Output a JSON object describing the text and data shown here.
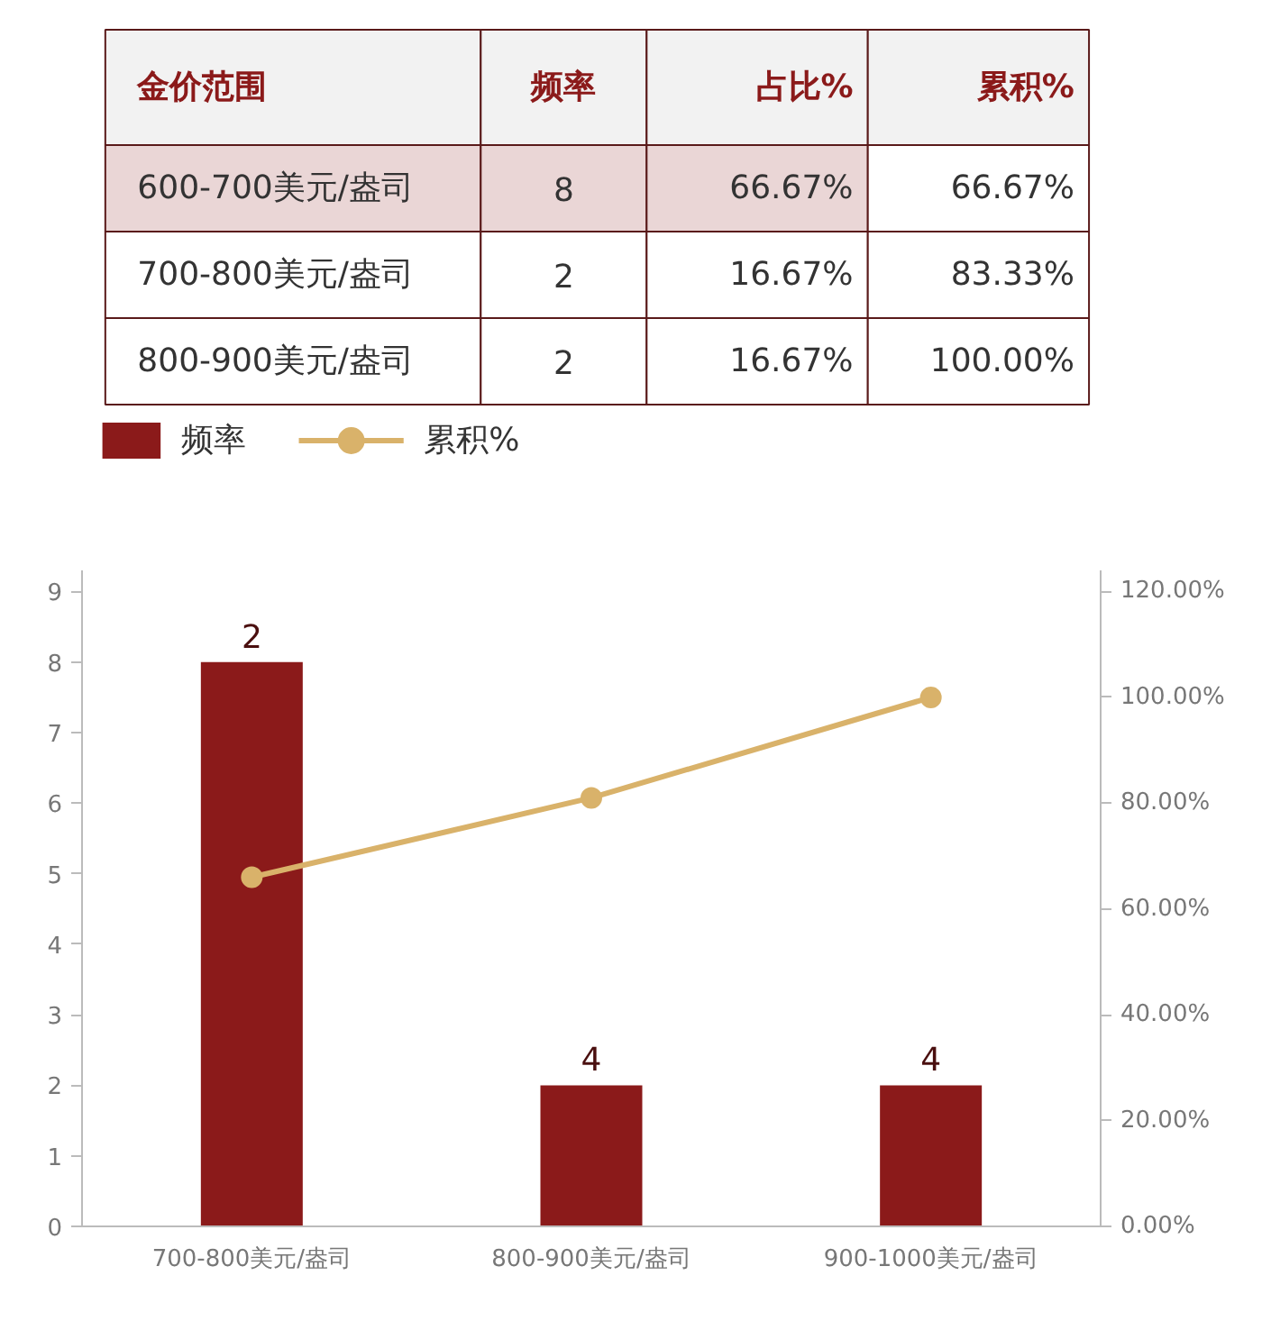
{
  "chart_data": [
    {
      "type": "other",
      "annotations": [
        "金价范围",
        "频率",
        "占比%",
        "累积%",
        "600-700美元/盎司",
        "8",
        "66.67%",
        "66.67%",
        "700-800美元/盎司",
        "2",
        "16.67%",
        "83.33%",
        "800-900美元/盎司",
        "2",
        "16.67%",
        "100.00%"
      ],
      "colors": [
        "#f2f2f2",
        "#f2f2f2",
        "#f2f2f2",
        "#f2f2f2",
        "#ead6d6",
        "#ead6d6",
        "#ead6d6",
        "#ffffff",
        "#ffffff",
        "#ffffff",
        "#ffffff",
        "#ffffff",
        "#ffffff",
        "#ffffff",
        "#ffffff",
        "#ffffff"
      ]
    },
    {
      "type": "bar",
      "categories": [
        "700-800美元/盎司",
        "800-900美元/盎司",
        "900-1000美元/盎司"
      ],
      "series": [
        {
          "name": "频率",
          "type": "bar",
          "color": "#8b1a1a",
          "values": [
            8,
            2,
            2
          ]
        },
        {
          "name": "累积%",
          "type": "line",
          "axis": "y2",
          "color": "#d9b26a",
          "values": [
            66,
            81,
            100
          ]
        }
      ],
      "ylim": [
        0,
        9.3
      ],
      "yticks": [
        0,
        1,
        2,
        3,
        4,
        5,
        6,
        7,
        8,
        9
      ],
      "y2lim": [
        0,
        124
      ],
      "y2ticks": [
        {
          "value": 0,
          "label": "0.00%"
        },
        {
          "value": 20,
          "label": "20.00%"
        },
        {
          "value": 40,
          "label": "40.00%"
        },
        {
          "value": 60,
          "label": "60.00%"
        },
        {
          "value": 80,
          "label": "80.00%"
        },
        {
          "value": 100,
          "label": "100.00%"
        },
        {
          "value": 120,
          "label": "120.00%"
        }
      ],
      "annotations": [
        {
          "text": "2",
          "x": "700-800美元/盎司",
          "y": 8
        },
        {
          "text": "4",
          "x": "800-900美元/盎司",
          "y": 2
        },
        {
          "text": "4",
          "x": "900-1000美元/盎司",
          "y": 2
        }
      ],
      "marker": "circle",
      "line_style": "solid",
      "grid": false,
      "legend": "top left"
    }
  ]
}
